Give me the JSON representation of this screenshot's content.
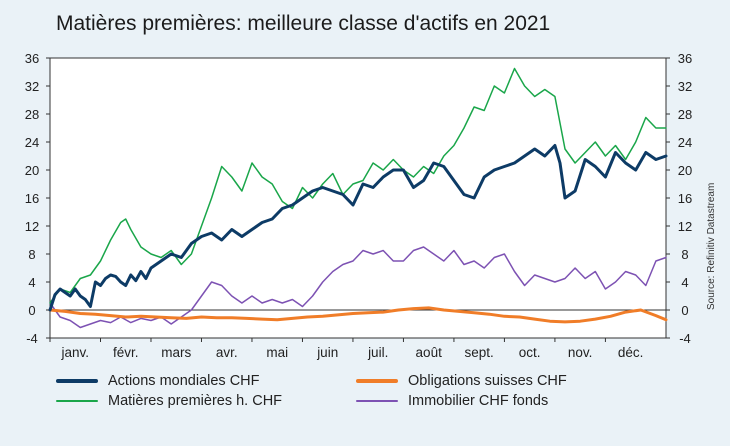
{
  "title": "Matières premières: meilleure classe d'actifs en 2021",
  "source": "Source: Refinitiv Datastream",
  "chart_data": {
    "type": "line",
    "x_labels": [
      "janv.",
      "févr.",
      "mars",
      "avr.",
      "mai",
      "juin",
      "juil.",
      "août",
      "sept.",
      "oct.",
      "nov.",
      "déc."
    ],
    "x_range": [
      0,
      12.2
    ],
    "ylim": [
      -4,
      36
    ],
    "yticks": [
      -4,
      0,
      4,
      8,
      12,
      16,
      20,
      24,
      28,
      32,
      36
    ],
    "y_axis_both_sides": true,
    "grid": false,
    "legend_position": "bottom",
    "series": [
      {
        "name": "Actions mondiales CHF",
        "color": "#0d3b66",
        "width": 3,
        "x": [
          0.0,
          0.1,
          0.2,
          0.3,
          0.4,
          0.5,
          0.6,
          0.7,
          0.8,
          0.9,
          1.0,
          1.1,
          1.2,
          1.3,
          1.4,
          1.5,
          1.6,
          1.7,
          1.8,
          1.9,
          2.0,
          2.2,
          2.4,
          2.6,
          2.8,
          3.0,
          3.2,
          3.4,
          3.6,
          3.8,
          4.0,
          4.2,
          4.4,
          4.6,
          4.8,
          5.0,
          5.2,
          5.4,
          5.6,
          5.8,
          6.0,
          6.2,
          6.4,
          6.6,
          6.8,
          7.0,
          7.2,
          7.4,
          7.6,
          7.8,
          8.0,
          8.2,
          8.4,
          8.6,
          8.8,
          9.0,
          9.2,
          9.4,
          9.6,
          9.8,
          10.0,
          10.1,
          10.2,
          10.4,
          10.6,
          10.8,
          11.0,
          11.2,
          11.4,
          11.6,
          11.8,
          12.0,
          12.2
        ],
        "values": [
          0.0,
          2.2,
          3.0,
          2.5,
          2.0,
          3.0,
          2.0,
          1.5,
          0.5,
          4.0,
          3.5,
          4.5,
          5.0,
          4.8,
          4.0,
          3.5,
          5.0,
          4.2,
          5.5,
          4.5,
          6.0,
          7.0,
          8.0,
          7.5,
          9.5,
          10.5,
          11.0,
          10.0,
          11.5,
          10.5,
          11.5,
          12.5,
          13.0,
          14.5,
          15.0,
          16.0,
          17.0,
          17.5,
          17.0,
          16.5,
          15.0,
          18.0,
          17.5,
          19.0,
          20.0,
          20.0,
          17.5,
          18.5,
          21.0,
          20.5,
          18.5,
          16.5,
          16.0,
          19.0,
          20.0,
          20.5,
          21.0,
          22.0,
          23.0,
          22.0,
          23.5,
          21.0,
          16.0,
          17.0,
          21.5,
          20.5,
          19.0,
          22.5,
          21.0,
          20.0,
          22.5,
          21.5,
          22.0
        ]
      },
      {
        "name": "Matières premières h. CHF",
        "color": "#1aa64a",
        "width": 1.5,
        "x": [
          0.0,
          0.2,
          0.4,
          0.6,
          0.8,
          1.0,
          1.2,
          1.4,
          1.5,
          1.6,
          1.8,
          2.0,
          2.2,
          2.4,
          2.6,
          2.8,
          3.0,
          3.2,
          3.4,
          3.6,
          3.8,
          4.0,
          4.2,
          4.4,
          4.6,
          4.8,
          5.0,
          5.2,
          5.4,
          5.6,
          5.8,
          6.0,
          6.2,
          6.4,
          6.6,
          6.8,
          7.0,
          7.2,
          7.4,
          7.6,
          7.8,
          8.0,
          8.2,
          8.4,
          8.6,
          8.8,
          9.0,
          9.2,
          9.4,
          9.6,
          9.8,
          10.0,
          10.2,
          10.4,
          10.6,
          10.8,
          11.0,
          11.2,
          11.4,
          11.6,
          11.8,
          12.0,
          12.2
        ],
        "values": [
          1.0,
          3.0,
          2.5,
          4.5,
          5.0,
          7.0,
          10.0,
          12.5,
          13.0,
          11.5,
          9.0,
          8.0,
          7.5,
          8.5,
          6.5,
          8.0,
          12.0,
          16.0,
          20.5,
          19.0,
          17.0,
          21.0,
          19.0,
          18.0,
          15.5,
          14.5,
          17.5,
          16.0,
          18.0,
          19.5,
          16.5,
          18.0,
          18.5,
          21.0,
          20.0,
          21.5,
          20.0,
          19.0,
          20.5,
          19.5,
          22.0,
          23.5,
          26.0,
          29.0,
          28.5,
          32.0,
          31.0,
          34.5,
          32.0,
          30.5,
          31.5,
          30.5,
          23.0,
          21.0,
          22.5,
          24.0,
          22.0,
          23.5,
          21.5,
          24.0,
          27.5,
          26.0,
          26.0
        ]
      },
      {
        "name": "Obligations suisses CHF",
        "color": "#f07d28",
        "width": 3,
        "x": [
          0.0,
          0.3,
          0.6,
          0.9,
          1.2,
          1.5,
          1.8,
          2.1,
          2.4,
          2.7,
          3.0,
          3.3,
          3.6,
          3.9,
          4.2,
          4.5,
          4.8,
          5.1,
          5.4,
          5.7,
          6.0,
          6.3,
          6.6,
          6.9,
          7.2,
          7.5,
          7.8,
          8.1,
          8.4,
          8.7,
          9.0,
          9.3,
          9.6,
          9.9,
          10.2,
          10.5,
          10.8,
          11.1,
          11.4,
          11.7,
          12.0,
          12.2
        ],
        "values": [
          0.0,
          -0.2,
          -0.5,
          -0.6,
          -0.8,
          -1.0,
          -0.9,
          -1.0,
          -1.1,
          -1.2,
          -1.0,
          -1.1,
          -1.1,
          -1.2,
          -1.3,
          -1.4,
          -1.2,
          -1.0,
          -0.9,
          -0.7,
          -0.5,
          -0.4,
          -0.3,
          0.0,
          0.2,
          0.3,
          0.0,
          -0.2,
          -0.4,
          -0.6,
          -0.9,
          -1.0,
          -1.3,
          -1.6,
          -1.7,
          -1.6,
          -1.3,
          -0.9,
          -0.3,
          0.0,
          -0.8,
          -1.4
        ]
      },
      {
        "name": "Immobilier CHF fonds",
        "color": "#7d52b3",
        "width": 1.5,
        "x": [
          0.0,
          0.2,
          0.4,
          0.6,
          0.8,
          1.0,
          1.2,
          1.4,
          1.6,
          1.8,
          2.0,
          2.2,
          2.4,
          2.6,
          2.8,
          3.0,
          3.2,
          3.4,
          3.6,
          3.8,
          4.0,
          4.2,
          4.4,
          4.6,
          4.8,
          5.0,
          5.2,
          5.4,
          5.6,
          5.8,
          6.0,
          6.2,
          6.4,
          6.6,
          6.8,
          7.0,
          7.2,
          7.4,
          7.6,
          7.8,
          8.0,
          8.2,
          8.4,
          8.6,
          8.8,
          9.0,
          9.2,
          9.4,
          9.6,
          9.8,
          10.0,
          10.2,
          10.4,
          10.6,
          10.8,
          11.0,
          11.2,
          11.4,
          11.6,
          11.8,
          12.0,
          12.2
        ],
        "values": [
          1.0,
          -1.0,
          -1.5,
          -2.5,
          -2.0,
          -1.5,
          -1.8,
          -1.0,
          -1.8,
          -1.2,
          -1.5,
          -1.0,
          -2.0,
          -1.0,
          0.0,
          2.0,
          4.0,
          3.5,
          2.0,
          1.0,
          2.0,
          1.0,
          1.5,
          1.0,
          1.5,
          0.5,
          2.0,
          4.0,
          5.5,
          6.5,
          7.0,
          8.5,
          8.0,
          8.5,
          7.0,
          7.0,
          8.5,
          9.0,
          8.0,
          7.0,
          8.5,
          6.5,
          7.0,
          6.0,
          7.5,
          8.0,
          5.5,
          3.5,
          5.0,
          4.5,
          4.0,
          4.5,
          6.0,
          4.5,
          5.5,
          3.0,
          4.0,
          5.5,
          5.0,
          3.5,
          7.0,
          7.5
        ]
      }
    ]
  }
}
